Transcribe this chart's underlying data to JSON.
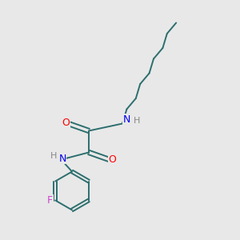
{
  "bg_color": "#e8e8e8",
  "bond_color": "#2d6e6e",
  "atom_colors": {
    "O": "#ff0000",
    "N": "#0000ee",
    "F": "#cc44cc",
    "H": "#888888",
    "C": "#2d6e6e"
  },
  "figsize": [
    3.0,
    3.0
  ],
  "dpi": 100,
  "lw": 1.4,
  "fontsize": 9
}
